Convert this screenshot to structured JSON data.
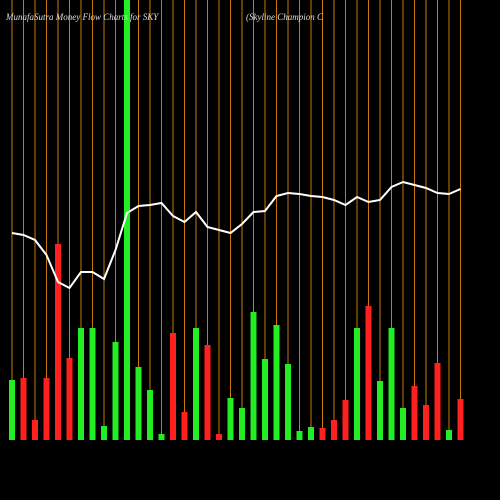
{
  "chart_data": {
    "type": "money-flow",
    "title": "MunafaSutra  Money Flow  Charts for SKY",
    "subtitle": "(Skyline    Champion  C",
    "ylim": [
      0,
      440
    ],
    "bar_values": [
      60,
      62,
      20,
      62,
      196,
      82,
      112,
      112,
      14,
      98,
      440,
      73,
      50,
      6,
      107,
      28,
      112,
      95,
      6,
      42,
      32,
      128,
      81,
      115,
      76,
      9,
      13,
      12,
      20,
      40,
      112,
      134,
      59,
      112,
      32,
      54,
      35,
      77,
      10,
      41
    ],
    "bar_colors": [
      "#22ee22",
      "#ff2020",
      "#ff2020",
      "#ff2020",
      "#ff2020",
      "#ff2020",
      "#22ee22",
      "#22ee22",
      "#22ee22",
      "#22ee22",
      "#22ee22",
      "#22ee22",
      "#22ee22",
      "#22ee22",
      "#ff2020",
      "#ff2020",
      "#22ee22",
      "#ff2020",
      "#ff2020",
      "#22ee22",
      "#22ee22",
      "#22ee22",
      "#22ee22",
      "#22ee22",
      "#22ee22",
      "#22ee22",
      "#22ee22",
      "#ff2020",
      "#ff2020",
      "#ff2020",
      "#22ee22",
      "#ff2020",
      "#22ee22",
      "#22ee22",
      "#22ee22",
      "#ff2020",
      "#ff2020",
      "#ff2020",
      "#22ee22",
      "#ff2020"
    ],
    "line_values": [
      207,
      205,
      200,
      185,
      158,
      152,
      168,
      168,
      161,
      190,
      227,
      234,
      235,
      237,
      224,
      218,
      228,
      213,
      210,
      207,
      216,
      228,
      229,
      244,
      247,
      246,
      244,
      243,
      240,
      235,
      243,
      238,
      240,
      253,
      258,
      255,
      252,
      247,
      246,
      251
    ],
    "line_color": "#ffffff",
    "grid_color": "#c8780a"
  }
}
